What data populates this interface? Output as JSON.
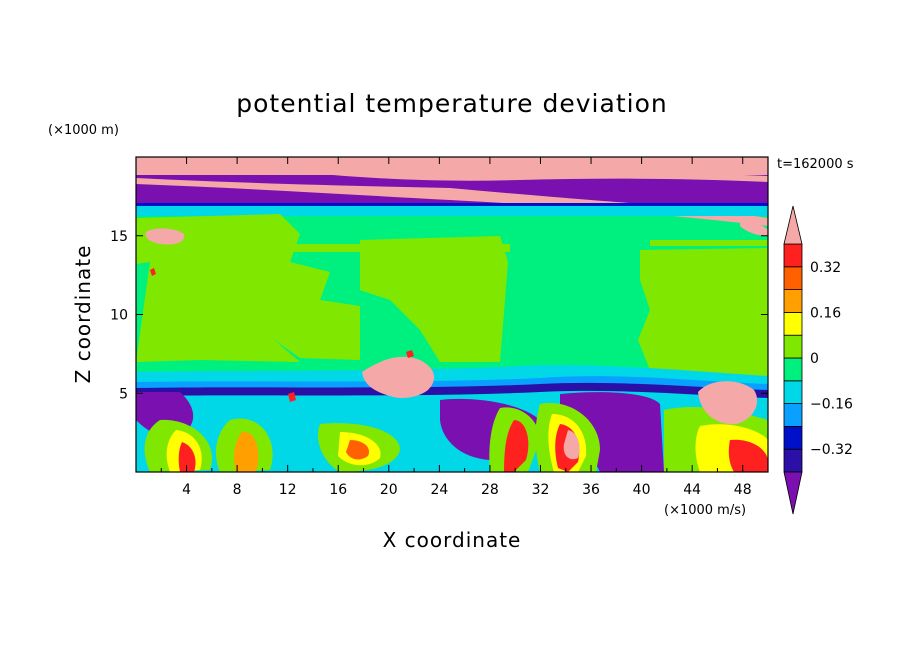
{
  "chart_data": {
    "type": "heatmap",
    "title": "potential temperature deviation",
    "xlabel": "X coordinate",
    "ylabel": "Z coordinate",
    "x_unit": "(×1000 m/s)",
    "y_unit": "(×1000 m)",
    "time_label": "t=162000 s",
    "xlim": [
      0,
      50
    ],
    "ylim": [
      0,
      20
    ],
    "x_ticks": [
      4,
      8,
      12,
      16,
      20,
      24,
      28,
      32,
      36,
      40,
      44,
      48
    ],
    "y_ticks": [
      5,
      10,
      15
    ],
    "colorbar": {
      "levels": [
        -0.4,
        -0.32,
        -0.24,
        -0.16,
        -0.08,
        0,
        0.08,
        0.16,
        0.24,
        0.32,
        0.4
      ],
      "tick_labels": [
        "0.32",
        "0.16",
        "0",
        "−0.16",
        "−0.32"
      ],
      "tick_values": [
        0.32,
        0.16,
        0,
        -0.16,
        -0.32
      ],
      "colors": [
        "#7a10b0",
        "#2b10a8",
        "#0010c8",
        "#0aa0ff",
        "#00d8e8",
        "#00f080",
        "#80e800",
        "#ffff00",
        "#ffa000",
        "#ff6000",
        "#ff2020",
        "#f4a8a8"
      ],
      "extend": "both"
    }
  }
}
